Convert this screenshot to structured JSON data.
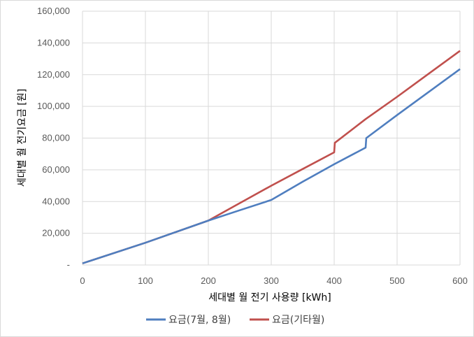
{
  "chart_data": {
    "type": "line",
    "title": "",
    "xlabel": "세대별 월 전기 사용량 [kWh]",
    "ylabel": "세대별 월 전기요금 [원]",
    "xlim": [
      0,
      600
    ],
    "ylim": [
      0,
      160000
    ],
    "x_ticks": [
      0,
      100,
      200,
      300,
      400,
      500,
      600
    ],
    "x_tick_labels": [
      "0",
      "100",
      "200",
      "300",
      "400",
      "500",
      "600"
    ],
    "y_ticks": [
      0,
      20000,
      40000,
      60000,
      80000,
      100000,
      120000,
      140000,
      160000
    ],
    "y_tick_labels": [
      "-",
      "20,000",
      "40,000",
      "60,000",
      "80,000",
      "100,000",
      "120,000",
      "140,000",
      "160,000"
    ],
    "grid": true,
    "legend_position": "bottom",
    "series": [
      {
        "name": "요금(7월, 8월)",
        "color": "#4f7ebf",
        "x": [
          0,
          100,
          200,
          250,
          300,
          350,
          400,
          450,
          451,
          500,
          550,
          600
        ],
        "y": [
          1000,
          14000,
          28000,
          34500,
          41000,
          52500,
          63500,
          74000,
          80000,
          94500,
          109000,
          123500
        ]
      },
      {
        "name": "요금(기타월)",
        "color": "#c0504d",
        "x": [
          0,
          100,
          200,
          250,
          300,
          350,
          400,
          401,
          450,
          500,
          550,
          600
        ],
        "y": [
          1000,
          14000,
          28000,
          39000,
          50000,
          60500,
          71000,
          77000,
          92000,
          106000,
          120500,
          135000
        ]
      }
    ]
  }
}
